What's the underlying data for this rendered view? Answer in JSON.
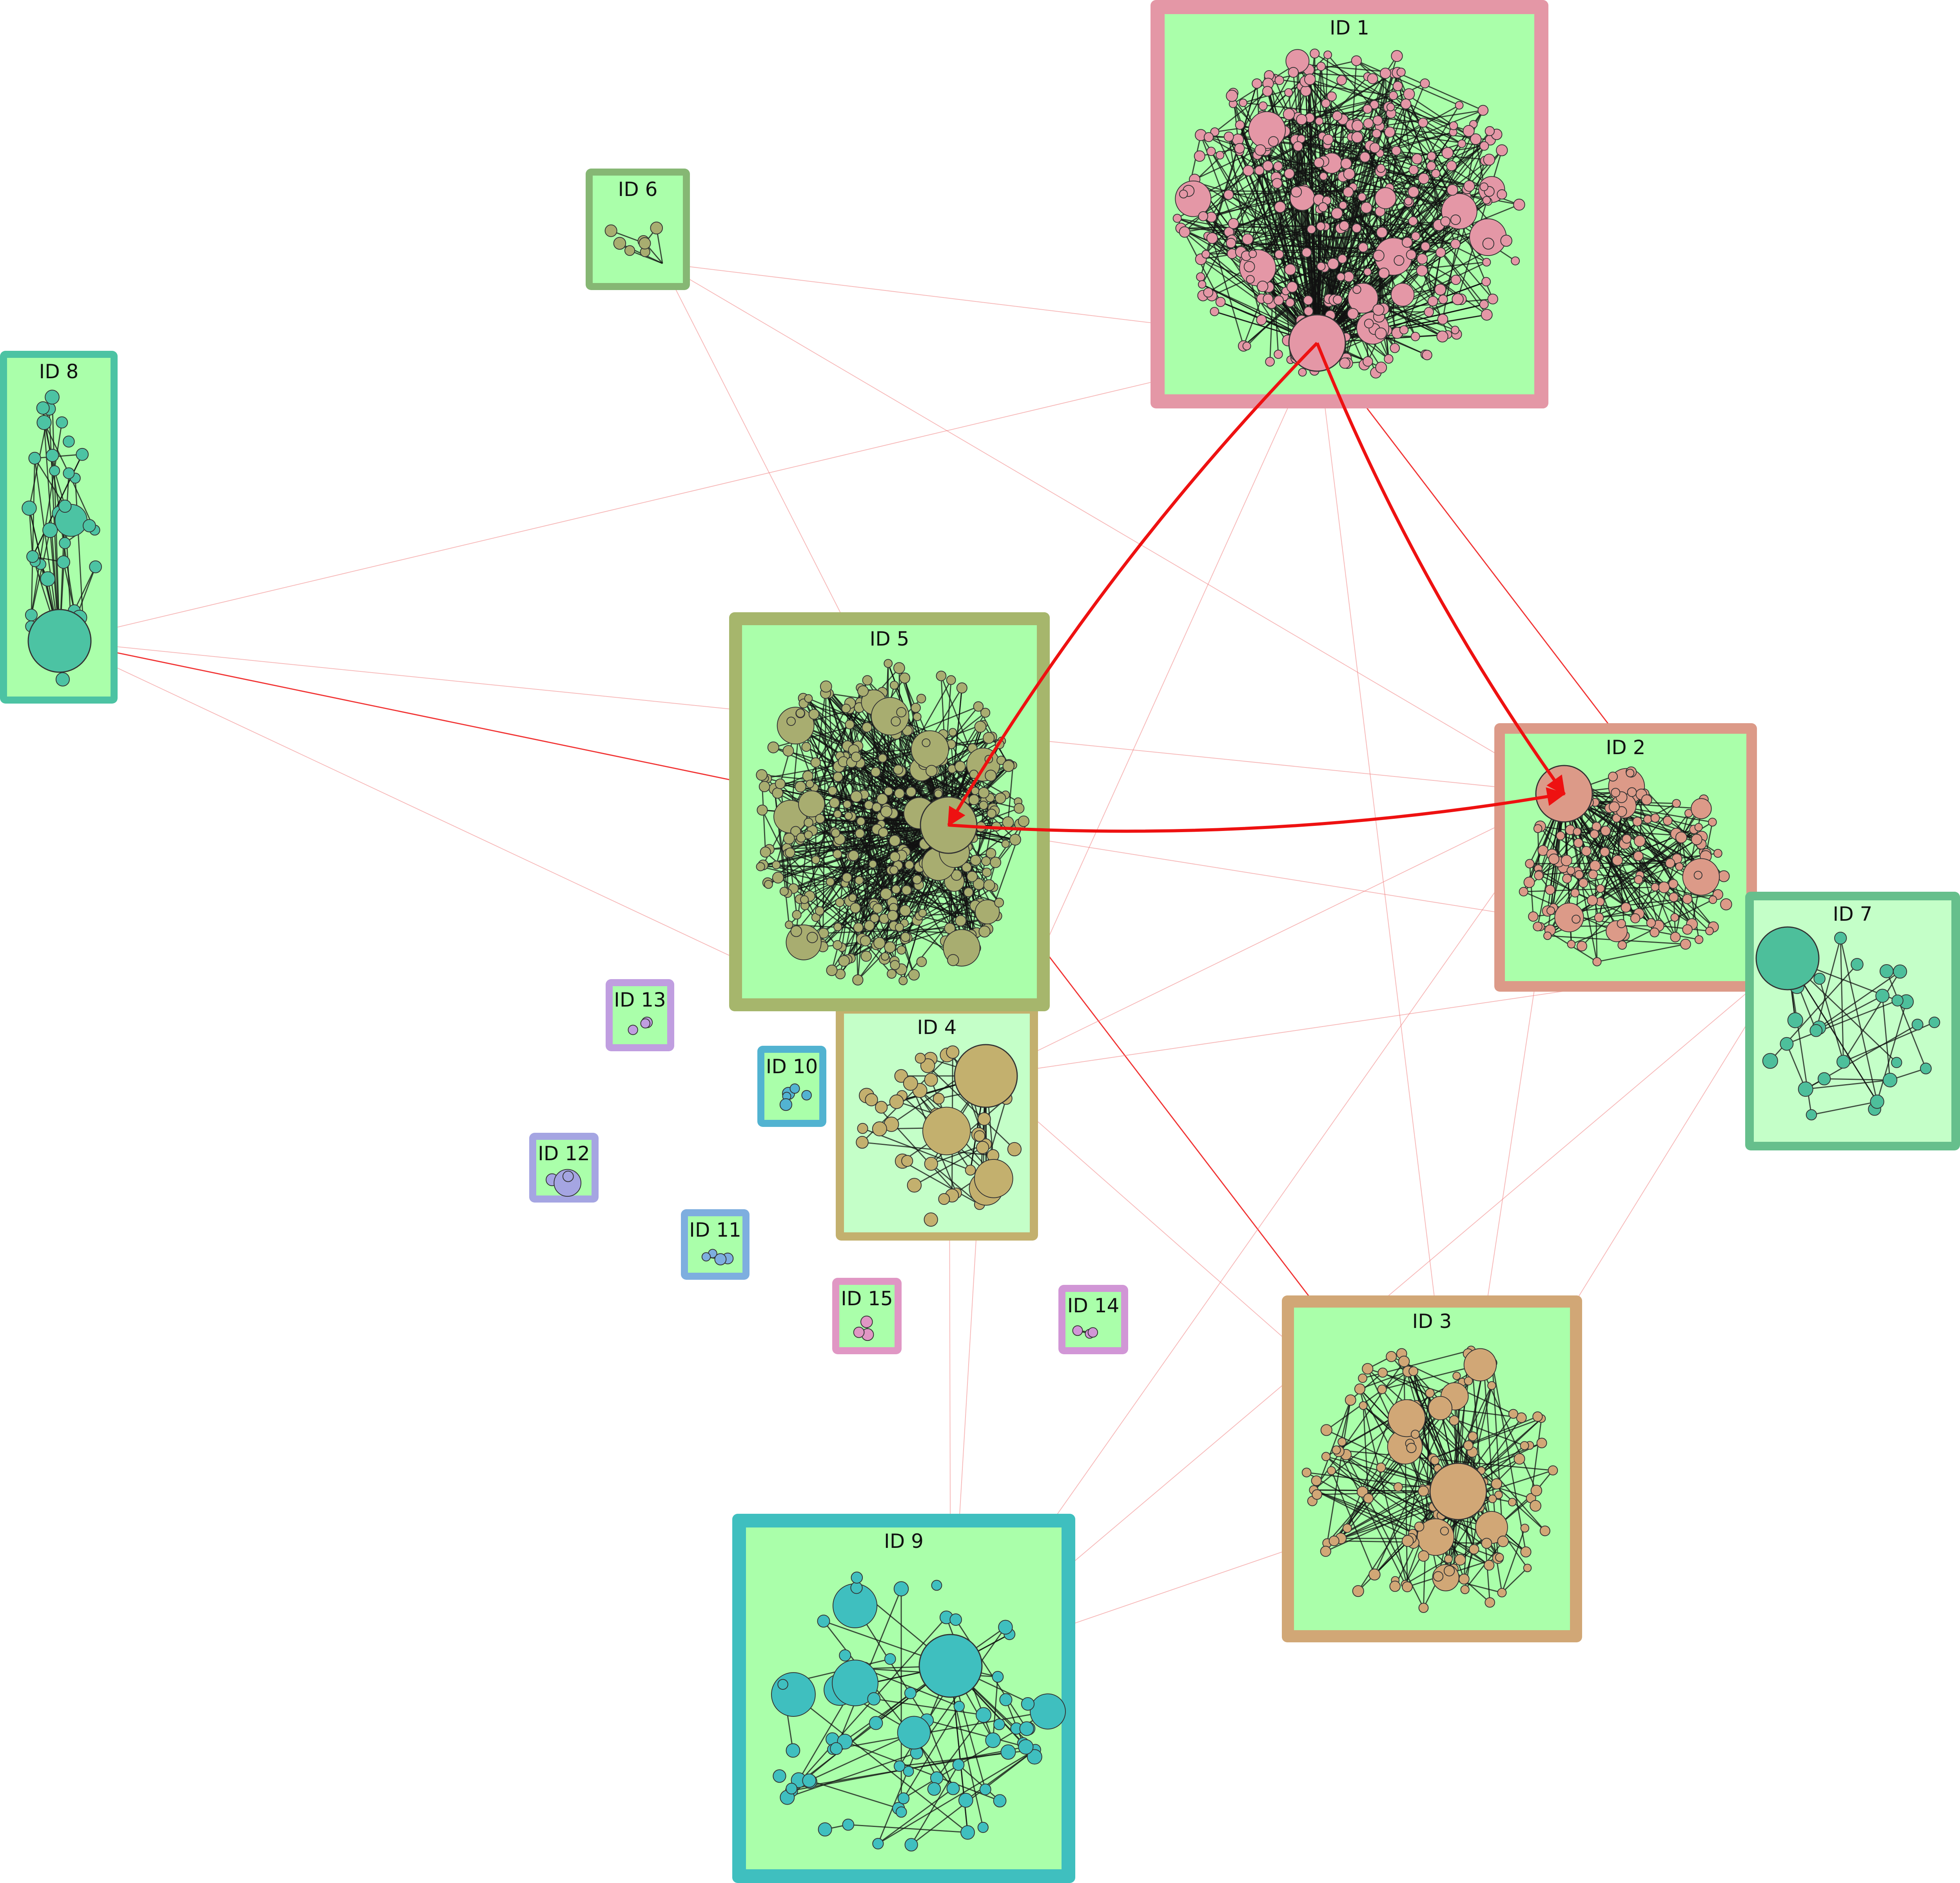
{
  "colors": {
    "inner_fill_default": "#aaffaa",
    "inner_fill_light": "#c4ffc8",
    "inter_edge_strong": "#ee1111",
    "inter_edge_faint": "#f08080",
    "intra_edge": "#111111"
  },
  "clusters": [
    {
      "id": 1,
      "label": "ID 1",
      "border_color": "#e497a6",
      "node_color": "#e497a6",
      "nodes": 330,
      "density": 0.95
    },
    {
      "id": 2,
      "label": "ID 2",
      "border_color": "#dc9a88",
      "node_color": "#dc9a88",
      "nodes": 140,
      "density": 0.7
    },
    {
      "id": 3,
      "label": "ID 3",
      "border_color": "#d1a776",
      "node_color": "#d1a776",
      "nodes": 130,
      "density": 0.8
    },
    {
      "id": 4,
      "label": "ID 4",
      "border_color": "#c3b06e",
      "node_color": "#c3b06e",
      "nodes": 50,
      "density": 0.25
    },
    {
      "id": 5,
      "label": "ID 5",
      "border_color": "#a6b66c",
      "node_color": "#a8ad70",
      "nodes": 330,
      "density": 0.95
    },
    {
      "id": 6,
      "label": "ID 6",
      "border_color": "#86b774",
      "node_color": "#a8ad70",
      "nodes": 7,
      "density": 0.6
    },
    {
      "id": 7,
      "label": "ID 7",
      "border_color": "#66bf8c",
      "node_color": "#4dbf9b",
      "nodes": 25,
      "density": 0.5
    },
    {
      "id": 8,
      "label": "ID 8",
      "border_color": "#4cc3a3",
      "node_color": "#4cc3a3",
      "nodes": 35,
      "density": 0.5
    },
    {
      "id": 9,
      "label": "ID 9",
      "border_color": "#3fbfbf",
      "node_color": "#3fbfbf",
      "nodes": 70,
      "density": 0.25
    },
    {
      "id": 10,
      "label": "ID 10",
      "border_color": "#52b3d1",
      "node_color": "#52b3d1",
      "nodes": 5,
      "density": 0.5
    },
    {
      "id": 11,
      "label": "ID 11",
      "border_color": "#7eaedf",
      "node_color": "#7eaedf",
      "nodes": 4,
      "density": 0.5
    },
    {
      "id": 12,
      "label": "ID 12",
      "border_color": "#a5a5e2",
      "node_color": "#a5a5e2",
      "nodes": 3,
      "density": 0.5
    },
    {
      "id": 13,
      "label": "ID 13",
      "border_color": "#c09ee0",
      "node_color": "#c09ee0",
      "nodes": 3,
      "density": 0.5
    },
    {
      "id": 14,
      "label": "ID 14",
      "border_color": "#d196d6",
      "node_color": "#d196d6",
      "nodes": 3,
      "density": 0.5
    },
    {
      "id": 15,
      "label": "ID 15",
      "border_color": "#e097c4",
      "node_color": "#e097c4",
      "nodes": 3,
      "density": 0.5
    }
  ],
  "inter_cluster_edges": [
    {
      "from": 1,
      "to": 5,
      "strength": "strong"
    },
    {
      "from": 1,
      "to": 2,
      "strength": "strong"
    },
    {
      "from": 5,
      "to": 2,
      "strength": "strong"
    },
    {
      "from": 8,
      "to": 5,
      "strength": "medium"
    },
    {
      "from": 5,
      "to": 3,
      "strength": "medium"
    },
    {
      "from": 1,
      "to": 7,
      "strength": "medium"
    },
    {
      "from": 6,
      "to": 1,
      "strength": "faint"
    },
    {
      "from": 6,
      "to": 2,
      "strength": "faint"
    },
    {
      "from": 6,
      "to": 5,
      "strength": "faint"
    },
    {
      "from": 8,
      "to": 1,
      "strength": "faint"
    },
    {
      "from": 8,
      "to": 2,
      "strength": "faint"
    },
    {
      "from": 8,
      "to": 4,
      "strength": "faint"
    },
    {
      "from": 1,
      "to": 4,
      "strength": "faint"
    },
    {
      "from": 1,
      "to": 3,
      "strength": "faint"
    },
    {
      "from": 4,
      "to": 2,
      "strength": "faint"
    },
    {
      "from": 4,
      "to": 7,
      "strength": "faint"
    },
    {
      "from": 4,
      "to": 9,
      "strength": "faint"
    },
    {
      "from": 4,
      "to": 3,
      "strength": "faint"
    },
    {
      "from": 5,
      "to": 7,
      "strength": "faint"
    },
    {
      "from": 9,
      "to": 2,
      "strength": "faint"
    },
    {
      "from": 9,
      "to": 7,
      "strength": "faint"
    },
    {
      "from": 9,
      "to": 3,
      "strength": "faint"
    },
    {
      "from": 2,
      "to": 3,
      "strength": "faint"
    },
    {
      "from": 7,
      "to": 3,
      "strength": "faint"
    },
    {
      "from": 5,
      "to": 9,
      "strength": "faint"
    }
  ]
}
